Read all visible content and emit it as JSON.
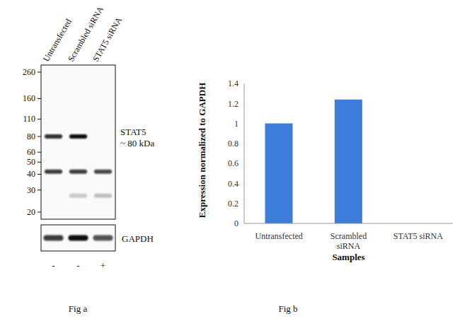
{
  "blot": {
    "caption": "Fig a",
    "lanes": [
      "Untransfected",
      "Scrambled siRNA",
      "STAT5 siRNA"
    ],
    "markers": [
      260,
      160,
      110,
      80,
      60,
      50,
      40,
      30,
      20
    ],
    "band_label": "STAT5",
    "band_size": "~ 80 kDa",
    "band_kda": 80,
    "bands": [
      {
        "kda": 80,
        "intensity": [
          0.85,
          1,
          0
        ]
      },
      {
        "kda": 42,
        "intensity": [
          0.8,
          0.8,
          0.75
        ]
      },
      {
        "kda": 27,
        "intensity": [
          0,
          0.2,
          0.25
        ]
      }
    ],
    "loading_control": "GAPDH",
    "loading_intensity": [
      0.8,
      1,
      0.7
    ],
    "treatment": [
      "-",
      "-",
      "+"
    ]
  },
  "chart_data": {
    "type": "bar",
    "caption": "Fig b",
    "categories": [
      "Untransfected",
      "Scrambled siRNA",
      "STAT5 siRNA"
    ],
    "values": [
      1,
      1.24,
      0
    ],
    "color": "#3b7dd8",
    "ylim": [
      0,
      1.4
    ],
    "yticks": [
      0,
      0.2,
      0.4,
      0.6,
      0.8,
      1,
      1.2,
      1.4
    ],
    "y_label": "Expression normalized to GAPDH",
    "x_label": "Samples",
    "grid": false
  }
}
